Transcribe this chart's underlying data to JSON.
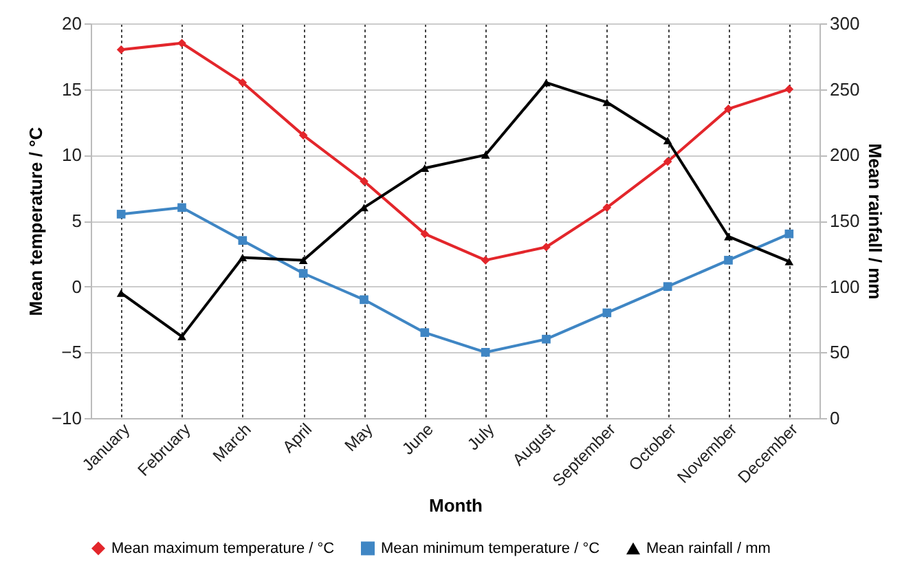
{
  "chart_data": {
    "type": "line",
    "categories": [
      "January",
      "February",
      "March",
      "April",
      "May",
      "June",
      "July",
      "August",
      "September",
      "October",
      "November",
      "December"
    ],
    "xlabel": "Month",
    "ylabel": "Mean temperature / °C",
    "y2label": "Mean rainfall / mm",
    "ylim": [
      -10,
      20
    ],
    "yticks": [
      -10,
      -5,
      0,
      5,
      10,
      15,
      20
    ],
    "y2lim": [
      0,
      300
    ],
    "y2ticks": [
      0,
      50,
      100,
      150,
      200,
      250,
      300
    ],
    "grid": true,
    "legend": "bottom",
    "series": [
      {
        "name": "Mean maximum temperature / °C",
        "color": "#e3262b",
        "marker": "diamond",
        "values": [
          18,
          18.5,
          15.5,
          11.5,
          8,
          4,
          2,
          3,
          6,
          9.5,
          13.5,
          15
        ]
      },
      {
        "name": "Mean minimum temperature / °C",
        "color": "#3f86c4",
        "marker": "square",
        "values": [
          5.5,
          6,
          3.5,
          1,
          -1,
          -3.5,
          -5,
          -4,
          -2,
          0,
          2,
          4
        ]
      },
      {
        "name": "Mean rainfall / mm",
        "color": "#000000",
        "marker": "triangle",
        "axis": "y2",
        "values": [
          95,
          62,
          122,
          120,
          160,
          190,
          200,
          255,
          240,
          211,
          138,
          119
        ]
      }
    ]
  }
}
